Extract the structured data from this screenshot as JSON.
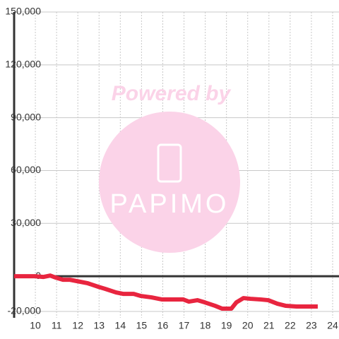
{
  "chart_data": {
    "type": "line",
    "x": [
      9.0,
      10.0,
      10.37,
      10.7,
      10.97,
      11.3,
      11.63,
      11.97,
      12.47,
      12.97,
      13.3,
      13.8,
      14.13,
      14.63,
      14.97,
      15.47,
      15.97,
      16.97,
      17.23,
      17.63,
      17.97,
      18.47,
      18.8,
      19.23,
      19.47,
      19.8,
      20.13,
      20.63,
      20.97,
      21.4,
      21.8,
      22.3,
      23.3
    ],
    "series": [
      {
        "color": "#e8253f",
        "values": [
          0,
          0,
          -400,
          400,
          -800,
          -2000,
          -2000,
          -2800,
          -4000,
          -6000,
          -7200,
          -9200,
          -10000,
          -10000,
          -11200,
          -12000,
          -13200,
          -13200,
          -14400,
          -13600,
          -14800,
          -16800,
          -18400,
          -18400,
          -14800,
          -12400,
          -12800,
          -13200,
          -13600,
          -15600,
          -16800,
          -17200,
          -17200
        ]
      }
    ],
    "xlim": [
      9.0,
      24.3
    ],
    "ylim": [
      -23600,
      150000
    ],
    "xticks": [
      10,
      11,
      12,
      13,
      14,
      15,
      16,
      17,
      18,
      19,
      20,
      21,
      22,
      23,
      24
    ],
    "yticks": [
      {
        "value": -20000,
        "label": "-20,000"
      },
      0,
      {
        "value": 30000,
        "label": "30,000"
      },
      {
        "value": 60000,
        "label": "60,000"
      },
      {
        "value": 90000,
        "label": "90,000"
      },
      {
        "value": 120000,
        "label": "120,000"
      },
      {
        "value": 150000,
        "label": "150,000"
      }
    ],
    "grid": true,
    "watermark": {
      "line1": "Powered by",
      "line2": "PAPIMO"
    }
  }
}
